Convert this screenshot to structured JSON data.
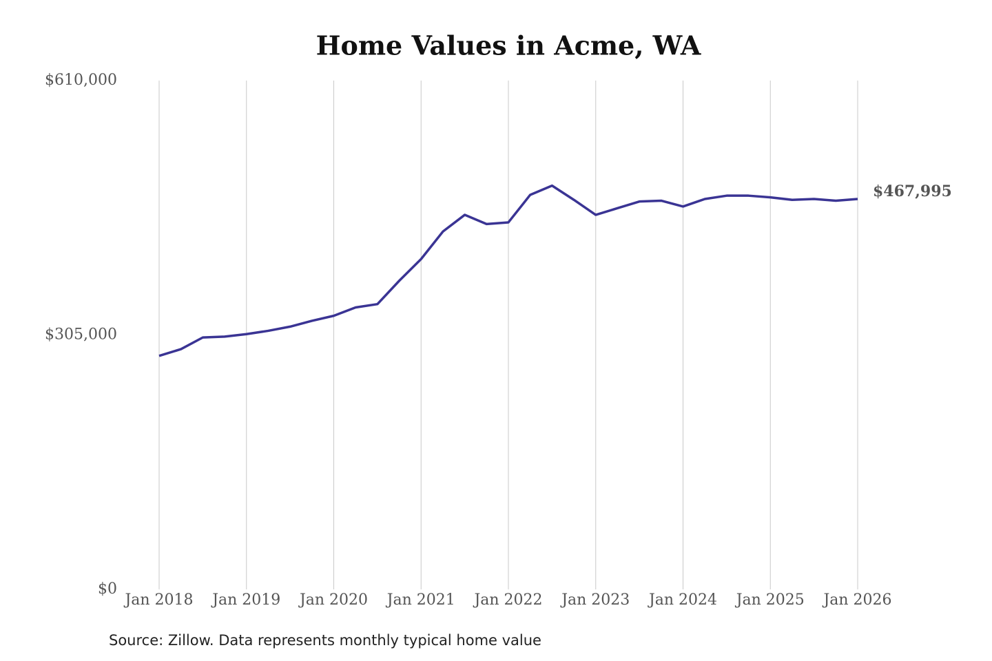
{
  "chart_data": {
    "type": "line",
    "title": "Home Values in Acme, WA",
    "source": "Source: Zillow. Data represents monthly typical home value",
    "categories": [
      "Jan 2018",
      null,
      null,
      null,
      "Jan 2019",
      null,
      null,
      null,
      "Jan 2020",
      null,
      null,
      null,
      "Jan 2021",
      null,
      null,
      null,
      "Jan 2022",
      null,
      null,
      null,
      "Jan 2023",
      null,
      null,
      null,
      "Jan 2024",
      null,
      null,
      null,
      "Jan 2025",
      null,
      null,
      null,
      "Jan 2026"
    ],
    "series": [
      {
        "name": "Home value",
        "color": "#3a3494",
        "values": [
          280000,
          288000,
          302000,
          303000,
          306000,
          310000,
          315000,
          322000,
          328000,
          338000,
          342000,
          370000,
          396000,
          429000,
          449000,
          438000,
          440000,
          473000,
          484000,
          467000,
          449000,
          457000,
          465000,
          466000,
          459000,
          468000,
          472000,
          472000,
          470000,
          467000,
          468000,
          466000,
          467995
        ]
      }
    ],
    "end_label": "$467,995",
    "ylim": [
      0,
      610000
    ],
    "yticks": [
      {
        "value": 0,
        "label": "$0"
      },
      {
        "value": 305000,
        "label": "$305,000"
      },
      {
        "value": 610000,
        "label": "$610,000"
      }
    ],
    "grid": true
  }
}
